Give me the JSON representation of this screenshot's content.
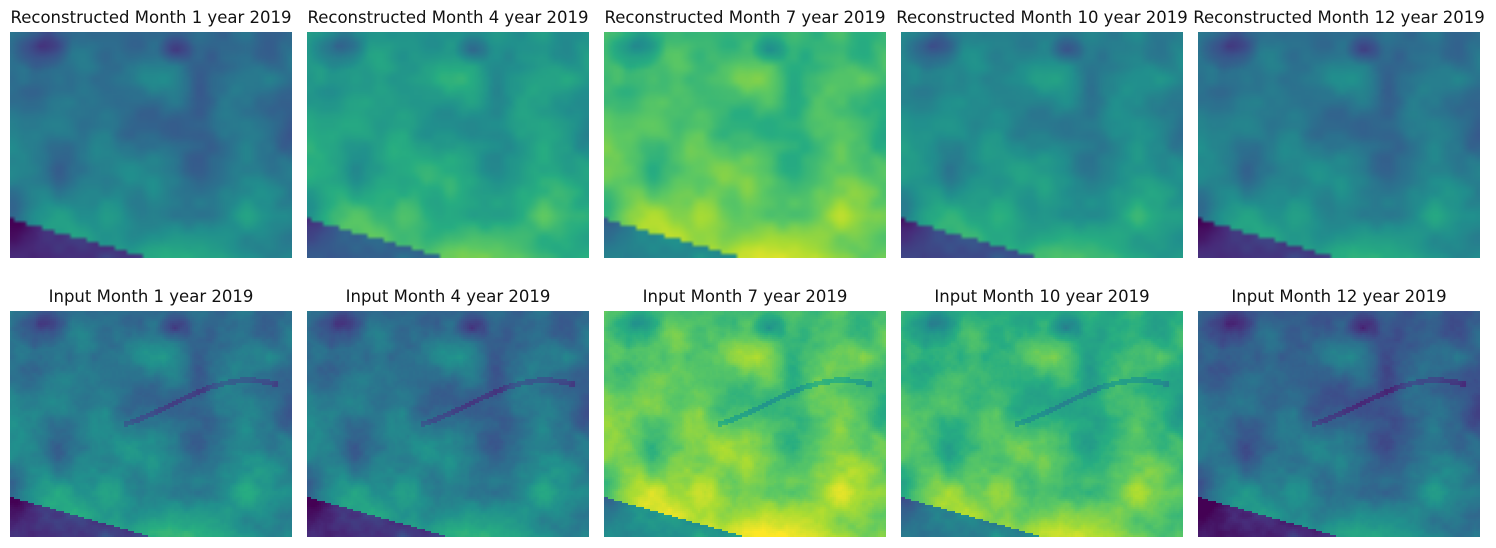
{
  "figure": {
    "colormap": "viridis",
    "rows": [
      {
        "kind": "reconstructed",
        "panels": [
          {
            "title": "Reconstructed Month 1 year 2019",
            "month": 1,
            "level": 0.38
          },
          {
            "title": "Reconstructed Month 4 year 2019",
            "month": 4,
            "level": 0.55
          },
          {
            "title": "Reconstructed Month 7 year 2019",
            "month": 7,
            "level": 0.7
          },
          {
            "title": "Reconstructed Month 10 year 2019",
            "month": 10,
            "level": 0.47
          },
          {
            "title": "Reconstructed Month 12 year 2019",
            "month": 12,
            "level": 0.4
          }
        ]
      },
      {
        "kind": "input",
        "panels": [
          {
            "title": "Input Month 1 year 2019",
            "month": 1,
            "level": 0.4
          },
          {
            "title": "Input Month 4 year 2019",
            "month": 4,
            "level": 0.38
          },
          {
            "title": "Input Month 7 year 2019",
            "month": 7,
            "level": 0.74
          },
          {
            "title": "Input Month 10 year 2019",
            "month": 10,
            "level": 0.66
          },
          {
            "title": "Input Month 12 year 2019",
            "month": 12,
            "level": 0.33
          }
        ]
      }
    ]
  }
}
